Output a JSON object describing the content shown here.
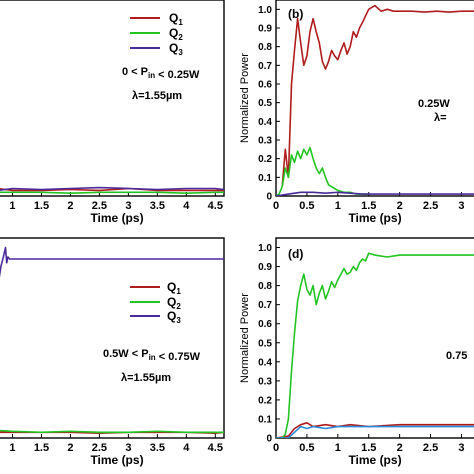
{
  "chart_data": [
    {
      "panel": "a",
      "type": "line",
      "title": "",
      "xlabel": "Time (ps)",
      "ylabel": "",
      "xlim": [
        0.75,
        4.65
      ],
      "ylim": [
        0,
        1.05
      ],
      "xticks": [
        "1",
        "1.5",
        "2",
        "2.5",
        "3",
        "3.5",
        "4",
        "4.5"
      ],
      "yticks": [],
      "annotation": [
        "0 < P_in < 0.25W",
        "λ=1.55µm"
      ],
      "series": [
        {
          "name": "Q1",
          "color": "#b01c1c",
          "x": [
            0.75,
            1.0,
            1.5,
            2.0,
            2.5,
            3.0,
            3.5,
            4.0,
            4.5,
            4.65
          ],
          "y": [
            0.04,
            0.03,
            0.03,
            0.035,
            0.03,
            0.04,
            0.03,
            0.03,
            0.03,
            0.03
          ]
        },
        {
          "name": "Q2",
          "color": "#22c422",
          "x": [
            0.75,
            1.0,
            1.5,
            2.0,
            2.5,
            3.0,
            3.5,
            4.0,
            4.5,
            4.65
          ],
          "y": [
            0.02,
            0.02,
            0.02,
            0.015,
            0.02,
            0.02,
            0.02,
            0.015,
            0.02,
            0.02
          ]
        },
        {
          "name": "Q3",
          "color": "#4a2a9a",
          "x": [
            0.75,
            1.0,
            1.5,
            2.0,
            2.5,
            3.0,
            3.5,
            4.0,
            4.5,
            4.65
          ],
          "y": [
            0.03,
            0.04,
            0.035,
            0.04,
            0.045,
            0.04,
            0.035,
            0.04,
            0.04,
            0.035
          ]
        }
      ],
      "legend": "top-right"
    },
    {
      "panel": "b",
      "type": "line",
      "label": "(b)",
      "title": "",
      "xlabel": "Time (ps)",
      "ylabel": "Normalized Power",
      "xlim": [
        0,
        3.3
      ],
      "ylim": [
        0,
        1.05
      ],
      "xticks": [
        "0",
        "0.5",
        "1",
        "1.5",
        "2",
        "2.5",
        "3"
      ],
      "yticks": [
        "0",
        "0.1",
        "0.2",
        "0.3",
        "0.4",
        "0.5",
        "0.6",
        "0.7",
        "0.8",
        "0.9",
        "1.0"
      ],
      "annotation": [
        "0.25W",
        "λ="
      ],
      "series": [
        {
          "name": "Q1",
          "color": "#b01c1c",
          "x": [
            0.1,
            0.15,
            0.2,
            0.25,
            0.3,
            0.35,
            0.4,
            0.45,
            0.5,
            0.55,
            0.6,
            0.65,
            0.7,
            0.75,
            0.8,
            0.85,
            0.9,
            0.95,
            1.0,
            1.05,
            1.1,
            1.15,
            1.2,
            1.25,
            1.3,
            1.35,
            1.4,
            1.5,
            1.6,
            1.7,
            1.8,
            1.9,
            2.0,
            2.2,
            2.4,
            2.6,
            2.8,
            3.0,
            3.2,
            3.3
          ],
          "y": [
            0.05,
            0.25,
            0.1,
            0.6,
            0.78,
            0.95,
            0.82,
            0.7,
            0.75,
            0.88,
            0.95,
            0.88,
            0.82,
            0.72,
            0.68,
            0.72,
            0.78,
            0.75,
            0.73,
            0.78,
            0.82,
            0.76,
            0.8,
            0.88,
            0.85,
            0.9,
            0.93,
            1.0,
            1.02,
            0.99,
            1.0,
            0.99,
            0.99,
            0.99,
            0.985,
            0.99,
            0.985,
            0.99,
            0.99,
            0.99
          ]
        },
        {
          "name": "Q2",
          "color": "#22c422",
          "x": [
            0.0,
            0.05,
            0.1,
            0.15,
            0.2,
            0.25,
            0.3,
            0.35,
            0.4,
            0.45,
            0.5,
            0.55,
            0.6,
            0.65,
            0.7,
            0.75,
            0.8,
            0.85,
            0.9,
            1.0,
            1.1,
            1.2,
            1.3,
            1.5
          ],
          "y": [
            0.0,
            0.01,
            0.05,
            0.15,
            0.1,
            0.22,
            0.18,
            0.24,
            0.2,
            0.25,
            0.22,
            0.26,
            0.2,
            0.15,
            0.12,
            0.15,
            0.1,
            0.06,
            0.05,
            0.03,
            0.02,
            0.02,
            0.01,
            0.01
          ]
        },
        {
          "name": "Q3",
          "color": "#4a2a9a",
          "x": [
            0.0,
            0.2,
            0.4,
            0.6,
            0.8,
            1.0,
            1.2,
            1.4,
            1.6,
            1.8,
            2.0,
            2.2,
            2.4,
            2.6,
            2.8,
            3.0,
            3.3
          ],
          "y": [
            0.0,
            0.01,
            0.02,
            0.02,
            0.015,
            0.02,
            0.015,
            0.01,
            0.01,
            0.01,
            0.01,
            0.01,
            0.01,
            0.01,
            0.01,
            0.01,
            0.01
          ]
        }
      ]
    },
    {
      "panel": "c",
      "type": "line",
      "title": "",
      "xlabel": "Time (ps)",
      "ylabel": "",
      "xlim": [
        0.75,
        4.65
      ],
      "ylim": [
        0,
        1.05
      ],
      "xticks": [
        "1",
        "1.5",
        "2",
        "2.5",
        "3",
        "3.5",
        "4",
        "4.5"
      ],
      "yticks": [],
      "annotation": [
        "0.5W < P_in < 0.75W",
        "λ=1.55µm"
      ],
      "series": [
        {
          "name": "Q1",
          "color": "#b01c1c",
          "x": [
            0.75,
            1.0,
            1.5,
            2.0,
            2.5,
            3.0,
            3.5,
            4.0,
            4.5,
            4.65
          ],
          "y": [
            0.03,
            0.03,
            0.03,
            0.03,
            0.025,
            0.03,
            0.03,
            0.03,
            0.025,
            0.03
          ]
        },
        {
          "name": "Q2",
          "color": "#22c422",
          "x": [
            0.75,
            1.0,
            1.5,
            2.0,
            2.5,
            3.0,
            3.5,
            4.0,
            4.5,
            4.65
          ],
          "y": [
            0.04,
            0.035,
            0.03,
            0.035,
            0.03,
            0.03,
            0.035,
            0.03,
            0.03,
            0.03
          ]
        },
        {
          "name": "Q3",
          "color": "#4a2a9a",
          "x": [
            0.75,
            0.8,
            0.85,
            0.88,
            0.9,
            0.92,
            0.95,
            1.0,
            1.5,
            2.0,
            2.5,
            3.0,
            3.5,
            4.0,
            4.5,
            4.65
          ],
          "y": [
            0.8,
            0.9,
            0.96,
            1.0,
            0.92,
            0.95,
            0.94,
            0.94,
            0.94,
            0.94,
            0.94,
            0.94,
            0.94,
            0.94,
            0.94,
            0.94
          ]
        }
      ]
    },
    {
      "panel": "d",
      "type": "line",
      "label": "(d)",
      "title": "",
      "xlabel": "Time (ps)",
      "ylabel": "Normalized Power",
      "xlim": [
        0,
        3.3
      ],
      "ylim": [
        0,
        1.05
      ],
      "xticks": [
        "0",
        "0.5",
        "1",
        "1.5",
        "2",
        "2.5",
        "3"
      ],
      "yticks": [
        "0",
        "0.1",
        "0.2",
        "0.3",
        "0.4",
        "0.5",
        "0.6",
        "0.7",
        "0.8",
        "0.9",
        "1.0"
      ],
      "annotation": [
        "0.75"
      ],
      "series": [
        {
          "name": "Q1",
          "color": "#b01c1c",
          "x": [
            0.0,
            0.2,
            0.3,
            0.4,
            0.5,
            0.6,
            0.8,
            1.0,
            1.2,
            1.5,
            2.0,
            2.5,
            3.0,
            3.3
          ],
          "y": [
            0.0,
            0.01,
            0.05,
            0.07,
            0.08,
            0.06,
            0.07,
            0.06,
            0.07,
            0.06,
            0.07,
            0.07,
            0.07,
            0.07
          ]
        },
        {
          "name": "Q2",
          "color": "#22c422",
          "x": [
            0.0,
            0.1,
            0.15,
            0.2,
            0.25,
            0.3,
            0.35,
            0.4,
            0.45,
            0.5,
            0.55,
            0.6,
            0.65,
            0.7,
            0.75,
            0.8,
            0.85,
            0.9,
            0.95,
            1.0,
            1.05,
            1.1,
            1.15,
            1.2,
            1.25,
            1.3,
            1.35,
            1.4,
            1.45,
            1.5,
            1.6,
            1.8,
            2.0,
            2.4,
            2.8,
            3.3
          ],
          "y": [
            0.0,
            0.0,
            0.02,
            0.1,
            0.35,
            0.55,
            0.72,
            0.8,
            0.86,
            0.78,
            0.75,
            0.8,
            0.7,
            0.76,
            0.8,
            0.73,
            0.77,
            0.82,
            0.79,
            0.83,
            0.86,
            0.89,
            0.86,
            0.87,
            0.9,
            0.88,
            0.92,
            0.94,
            0.93,
            0.97,
            0.96,
            0.95,
            0.96,
            0.96,
            0.96,
            0.96
          ]
        },
        {
          "name": "Q3",
          "color": "#2a8ad8",
          "x": [
            0.0,
            0.2,
            0.3,
            0.4,
            0.5,
            0.6,
            0.8,
            1.0,
            1.5,
            2.0,
            2.5,
            3.0,
            3.3
          ],
          "y": [
            0.0,
            0.0,
            0.03,
            0.06,
            0.05,
            0.06,
            0.05,
            0.06,
            0.06,
            0.06,
            0.06,
            0.06,
            0.06
          ]
        }
      ]
    }
  ],
  "legend_labels": {
    "a": [
      "Q",
      "Q",
      "Q"
    ],
    "c": [
      "Q",
      "Q",
      "Q"
    ]
  },
  "legend_subscripts": [
    "1",
    "2",
    "3"
  ]
}
